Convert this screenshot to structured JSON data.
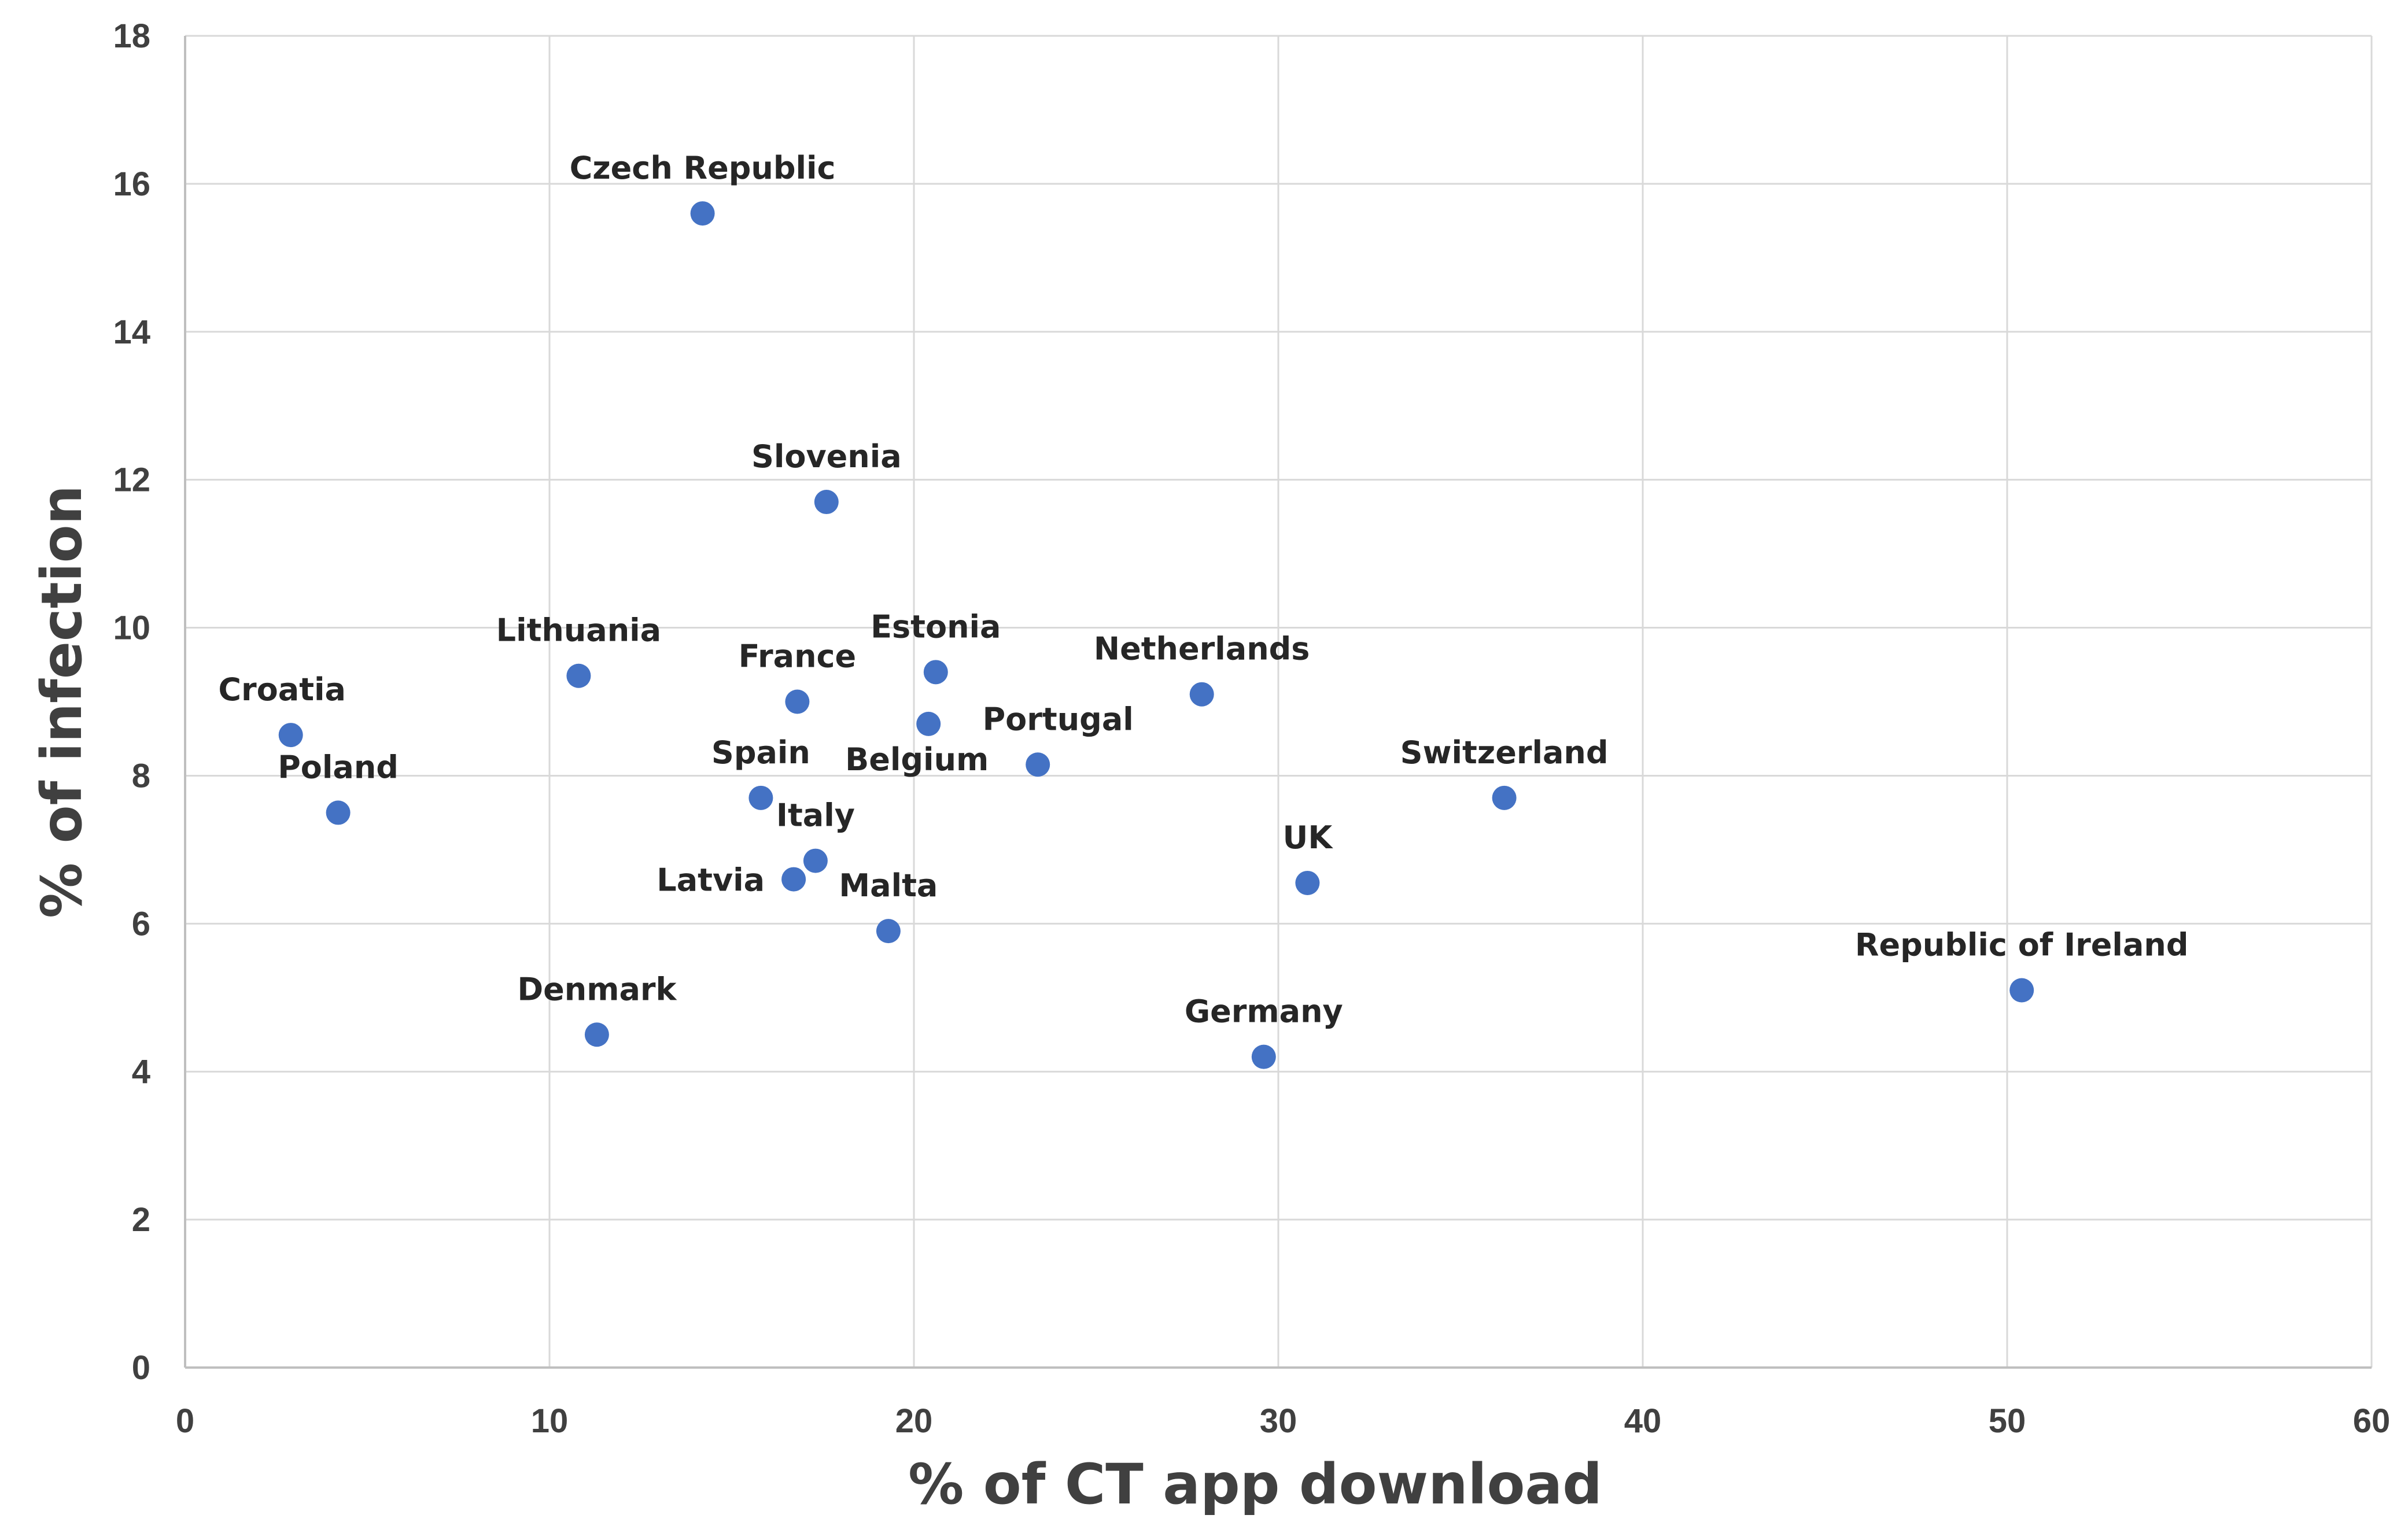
{
  "chart_data": {
    "type": "scatter",
    "title": "",
    "xlabel": "% of CT app download",
    "ylabel": "% of infection",
    "xlim": [
      0,
      60
    ],
    "ylim": [
      0,
      18
    ],
    "xticks": [
      0,
      10,
      20,
      30,
      40,
      50,
      60
    ],
    "yticks": [
      0,
      2,
      4,
      6,
      8,
      10,
      12,
      14,
      16,
      18
    ],
    "grid": true,
    "legend": "none",
    "marker_color": "#4472c4",
    "points": [
      {
        "label": "Czech Republic",
        "x": 14.2,
        "y": 15.6,
        "label_pos": "above"
      },
      {
        "label": "Slovenia",
        "x": 17.6,
        "y": 11.7,
        "label_pos": "above"
      },
      {
        "label": "Lithuania",
        "x": 10.8,
        "y": 9.35,
        "label_pos": "above"
      },
      {
        "label": "Estonia",
        "x": 20.6,
        "y": 9.4,
        "label_pos": "above"
      },
      {
        "label": "France",
        "x": 16.8,
        "y": 9.0,
        "label_pos": "above"
      },
      {
        "label": "Netherlands",
        "x": 27.9,
        "y": 9.1,
        "label_pos": "above"
      },
      {
        "label": "Croatia",
        "x": 2.9,
        "y": 8.55,
        "label_pos": "above-left"
      },
      {
        "label": "Belgium",
        "x": 20.4,
        "y": 8.7,
        "label_pos": "below-left"
      },
      {
        "label": "Portugal",
        "x": 23.4,
        "y": 8.15,
        "label_pos": "above-right"
      },
      {
        "label": "Poland",
        "x": 4.2,
        "y": 7.5,
        "label_pos": "above"
      },
      {
        "label": "Spain",
        "x": 15.8,
        "y": 7.7,
        "label_pos": "above"
      },
      {
        "label": "Switzerland",
        "x": 36.2,
        "y": 7.7,
        "label_pos": "above"
      },
      {
        "label": "Italy",
        "x": 17.3,
        "y": 6.85,
        "label_pos": "above"
      },
      {
        "label": "Latvia",
        "x": 16.7,
        "y": 6.6,
        "label_pos": "left"
      },
      {
        "label": "UK",
        "x": 30.8,
        "y": 6.55,
        "label_pos": "above"
      },
      {
        "label": "Malta",
        "x": 19.3,
        "y": 5.9,
        "label_pos": "above"
      },
      {
        "label": "Republic of Ireland",
        "x": 50.4,
        "y": 5.1,
        "label_pos": "above"
      },
      {
        "label": "Denmark",
        "x": 11.3,
        "y": 4.5,
        "label_pos": "above"
      },
      {
        "label": "Germany",
        "x": 29.6,
        "y": 4.2,
        "label_pos": "above"
      }
    ]
  }
}
